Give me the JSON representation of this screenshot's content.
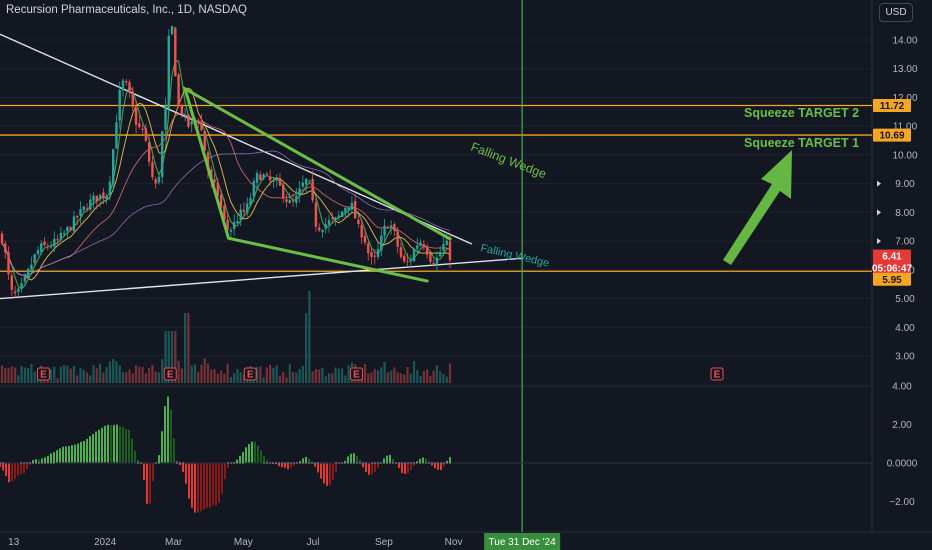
{
  "header": {
    "title": "Recursion Pharmaceuticals, Inc., 1D, NASDAQ",
    "currency": "USD"
  },
  "price_axis": {
    "ticks": [
      "14.00",
      "13.00",
      "12.00",
      "11.00",
      "10.00",
      "9.00",
      "8.00",
      "7.00",
      "6.00",
      "5.00",
      "4.00",
      "3.00"
    ],
    "tags": [
      {
        "text": "11.72",
        "color": "#f5a623",
        "text_color": "#131722"
      },
      {
        "text": "10.69",
        "color": "#f5a623",
        "text_color": "#131722"
      },
      {
        "text": "6.41",
        "color": "#e53935",
        "text_color": "#ffffff"
      },
      {
        "text": "05:06:47",
        "color": "#e53935",
        "text_color": "#ffffff"
      },
      {
        "text": "5.95",
        "color": "#f5a623",
        "text_color": "#131722"
      }
    ]
  },
  "osc_axis": {
    "ticks": [
      "4.00",
      "2.00",
      "0.0000",
      "−2.00"
    ]
  },
  "time_axis": {
    "ticks": [
      "13",
      "2024",
      "Mar",
      "May",
      "Jul",
      "Sep",
      "Nov"
    ],
    "crosshair_label": "Tue 31 Dec '24"
  },
  "annotations": {
    "target2": "Squeeze TARGET 2",
    "target1": "Squeeze TARGET 1",
    "wedge_top": "Falling Wedge",
    "wedge_bottom": "Falling Wedge",
    "earnings_marker": "E"
  },
  "colors": {
    "up": "#26a69a",
    "down": "#ef5350",
    "target_line": "#f5a623",
    "wedge": "#6abf47",
    "annotation_text": "#6abf47",
    "crosshair": "#4caf50",
    "squeeze_up_strong": "#4caf50",
    "squeeze_down_strong": "#e53935"
  },
  "chart_data": {
    "type": "candlestick",
    "symbol": "Recursion Pharmaceuticals, Inc.",
    "interval": "1D",
    "exchange": "NASDAQ",
    "last_price": 6.41,
    "countdown": "05:06:47",
    "horizontal_levels": [
      11.72,
      10.69,
      5.95
    ],
    "ylim": [
      2.4,
      15.0
    ],
    "osc_ylim": [
      -3.0,
      4.0
    ],
    "price_anchors": [
      {
        "x": "2023-10-01",
        "y": 7.2
      },
      {
        "x": "2023-10-13",
        "y": 5.1
      },
      {
        "x": "2023-11-08",
        "y": 6.8
      },
      {
        "x": "2024-01-01",
        "y": 8.6
      },
      {
        "x": "2024-01-17",
        "y": 12.5
      },
      {
        "x": "2024-02-01",
        "y": 10.9
      },
      {
        "x": "2024-02-15",
        "y": 8.9
      },
      {
        "x": "2024-02-23",
        "y": 11.6
      },
      {
        "x": "2024-02-27",
        "y": 14.7
      },
      {
        "x": "2024-03-06",
        "y": 11.6
      },
      {
        "x": "2024-03-15",
        "y": 11.0
      },
      {
        "x": "2024-03-21",
        "y": 11.3
      },
      {
        "x": "2024-04-05",
        "y": 8.9
      },
      {
        "x": "2024-04-18",
        "y": 7.4
      },
      {
        "x": "2024-05-01",
        "y": 8.0
      },
      {
        "x": "2024-05-15",
        "y": 9.3
      },
      {
        "x": "2024-05-29",
        "y": 9.0
      },
      {
        "x": "2024-06-12",
        "y": 8.3
      },
      {
        "x": "2024-06-26",
        "y": 9.1
      },
      {
        "x": "2024-07-05",
        "y": 7.5
      },
      {
        "x": "2024-07-19",
        "y": 7.7
      },
      {
        "x": "2024-08-02",
        "y": 8.3
      },
      {
        "x": "2024-08-12",
        "y": 7.3
      },
      {
        "x": "2024-08-22",
        "y": 6.3
      },
      {
        "x": "2024-09-05",
        "y": 7.6
      },
      {
        "x": "2024-09-20",
        "y": 6.2
      },
      {
        "x": "2024-10-03",
        "y": 7.0
      },
      {
        "x": "2024-10-15",
        "y": 6.3
      },
      {
        "x": "2024-10-25",
        "y": 6.9
      },
      {
        "x": "2024-10-30",
        "y": 6.41
      }
    ],
    "osc_anchors": [
      {
        "x": "2023-10-01",
        "y": -0.2
      },
      {
        "x": "2023-10-10",
        "y": -1.0
      },
      {
        "x": "2023-10-20",
        "y": -0.6
      },
      {
        "x": "2023-11-01",
        "y": 0.2
      },
      {
        "x": "2023-12-01",
        "y": 0.9
      },
      {
        "x": "2024-01-08",
        "y": 2.0
      },
      {
        "x": "2024-01-20",
        "y": 1.8
      },
      {
        "x": "2024-02-01",
        "y": 0.0
      },
      {
        "x": "2024-02-08",
        "y": -2.3
      },
      {
        "x": "2024-02-15",
        "y": 0.0
      },
      {
        "x": "2024-02-25",
        "y": 3.5
      },
      {
        "x": "2024-03-05",
        "y": 0.0
      },
      {
        "x": "2024-03-20",
        "y": -2.6
      },
      {
        "x": "2024-04-08",
        "y": -2.2
      },
      {
        "x": "2024-04-20",
        "y": 0.0
      },
      {
        "x": "2024-05-10",
        "y": 1.1
      },
      {
        "x": "2024-05-25",
        "y": 0.0
      },
      {
        "x": "2024-06-10",
        "y": -0.3
      },
      {
        "x": "2024-06-25",
        "y": 0.3
      },
      {
        "x": "2024-07-15",
        "y": -1.2
      },
      {
        "x": "2024-07-25",
        "y": 0.0
      },
      {
        "x": "2024-08-05",
        "y": 0.5
      },
      {
        "x": "2024-08-20",
        "y": -0.6
      },
      {
        "x": "2024-09-05",
        "y": 0.4
      },
      {
        "x": "2024-09-20",
        "y": -0.6
      },
      {
        "x": "2024-10-05",
        "y": 0.3
      },
      {
        "x": "2024-10-20",
        "y": -0.4
      },
      {
        "x": "2024-10-30",
        "y": 0.3
      }
    ],
    "volume_spikes": [
      {
        "x": "2024-03-12"
      },
      {
        "x": "2024-06-26"
      },
      {
        "x": "2024-06-28"
      }
    ],
    "earnings_dates": [
      "2023-11-08",
      "2024-02-27",
      "2024-05-07",
      "2024-08-08"
    ],
    "wedge_upper": [
      {
        "x": "2024-03-11",
        "y": 12.3
      },
      {
        "x": "2024-10-30",
        "y": 7.05
      }
    ],
    "wedge_lower": [
      {
        "x": "2024-04-18",
        "y": 7.1
      },
      {
        "x": "2024-10-10",
        "y": 5.6
      }
    ],
    "trendline_white_down": [
      {
        "x": "2023-10-01",
        "y": 14.2
      },
      {
        "x": "2024-11-17",
        "y": 6.9
      }
    ],
    "trendline_white_up": [
      {
        "x": "2023-10-01",
        "y": 5.0
      },
      {
        "x": "2024-12-31",
        "y": 6.4
      }
    ],
    "crosshair_date": "2024-12-31"
  }
}
